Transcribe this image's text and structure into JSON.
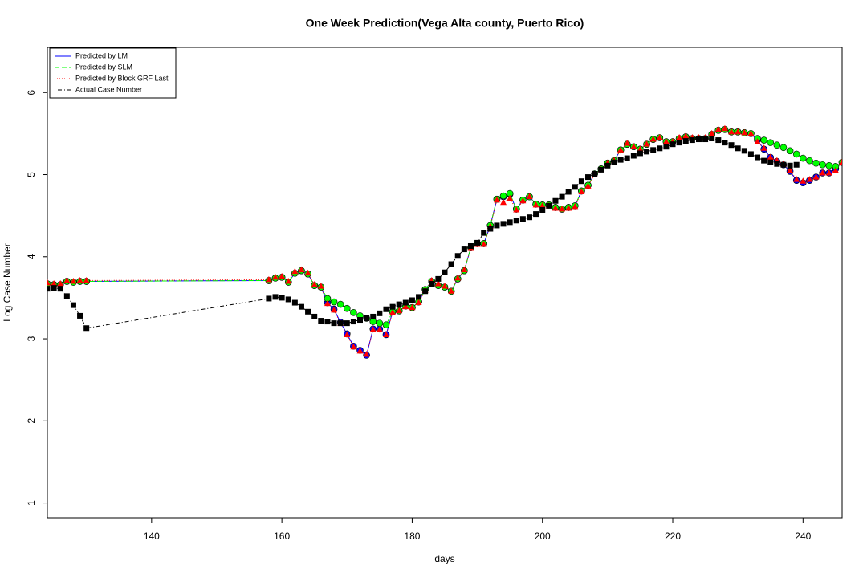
{
  "chart_data": {
    "type": "line",
    "title": "One Week Prediction(Vega Alta county, Puerto Rico)",
    "x_label": "days",
    "y_label": "Log Case Number",
    "xlim": [
      124,
      246
    ],
    "xticks": [
      140,
      160,
      180,
      200,
      220,
      240
    ],
    "ylim": [
      0.82,
      6.55
    ],
    "yticks": [
      1,
      2,
      3,
      4,
      5,
      6
    ],
    "legend": "top-left",
    "x": [
      124,
      125,
      126,
      127,
      128,
      129,
      130,
      158,
      159,
      160,
      161,
      162,
      163,
      164,
      165,
      166,
      167,
      168,
      169,
      170,
      171,
      172,
      173,
      174,
      175,
      176,
      177,
      178,
      179,
      180,
      181,
      182,
      183,
      184,
      185,
      186,
      187,
      188,
      189,
      190,
      191,
      192,
      193,
      194,
      195,
      196,
      197,
      198,
      199,
      200,
      201,
      202,
      203,
      204,
      205,
      206,
      207,
      208,
      209,
      210,
      211,
      212,
      213,
      214,
      215,
      216,
      217,
      218,
      219,
      220,
      221,
      222,
      223,
      224,
      225,
      226,
      227,
      228,
      229,
      230,
      231,
      232,
      233,
      234,
      235,
      236,
      237,
      238,
      239,
      240,
      241,
      242,
      243,
      244,
      245,
      246
    ],
    "series": [
      {
        "name": "Predicted by LM",
        "color": "#0000ff",
        "line_style": "solid",
        "marker": "circle",
        "values": [
          3.67,
          3.66,
          3.66,
          3.7,
          3.69,
          3.7,
          3.7,
          3.71,
          3.74,
          3.75,
          3.69,
          3.8,
          3.83,
          3.79,
          3.65,
          3.63,
          3.44,
          3.36,
          3.2,
          3.06,
          2.91,
          2.86,
          2.8,
          3.12,
          3.12,
          3.05,
          3.33,
          3.34,
          3.4,
          3.38,
          3.45,
          3.6,
          3.7,
          3.65,
          3.63,
          3.58,
          3.73,
          3.83,
          4.11,
          4.16,
          4.16,
          4.38,
          4.7,
          4.73,
          4.76,
          4.58,
          4.69,
          4.73,
          4.64,
          4.63,
          4.63,
          4.6,
          4.58,
          4.6,
          4.62,
          4.8,
          4.87,
          5.01,
          5.07,
          5.14,
          5.17,
          5.3,
          5.37,
          5.34,
          5.31,
          5.37,
          5.43,
          5.45,
          5.4,
          5.4,
          5.44,
          5.46,
          5.44,
          5.44,
          5.44,
          5.49,
          5.54,
          5.55,
          5.52,
          5.52,
          5.51,
          5.5,
          5.42,
          5.31,
          5.21,
          5.16,
          5.12,
          5.04,
          4.93,
          4.9,
          4.93,
          4.97,
          5.02,
          5.02,
          5.07,
          5.15
        ]
      },
      {
        "name": "Predicted by SLM",
        "color": "#00ff00",
        "line_style": "dashed",
        "marker": "circle",
        "values": [
          3.67,
          3.66,
          3.66,
          3.7,
          3.69,
          3.7,
          3.7,
          3.71,
          3.74,
          3.75,
          3.69,
          3.8,
          3.83,
          3.79,
          3.65,
          3.63,
          3.49,
          3.45,
          3.42,
          3.37,
          3.32,
          3.28,
          3.25,
          3.21,
          3.19,
          3.17,
          3.33,
          3.34,
          3.4,
          3.38,
          3.45,
          3.6,
          3.7,
          3.65,
          3.63,
          3.58,
          3.73,
          3.83,
          4.11,
          4.16,
          4.16,
          4.38,
          4.7,
          4.74,
          4.77,
          4.58,
          4.69,
          4.73,
          4.64,
          4.63,
          4.63,
          4.6,
          4.58,
          4.6,
          4.62,
          4.8,
          4.87,
          5.01,
          5.07,
          5.14,
          5.17,
          5.3,
          5.37,
          5.34,
          5.31,
          5.37,
          5.43,
          5.45,
          5.4,
          5.4,
          5.44,
          5.46,
          5.44,
          5.44,
          5.44,
          5.49,
          5.54,
          5.55,
          5.52,
          5.52,
          5.51,
          5.5,
          5.44,
          5.42,
          5.39,
          5.36,
          5.33,
          5.29,
          5.25,
          5.2,
          5.17,
          5.14,
          5.12,
          5.11,
          5.1,
          5.15
        ]
      },
      {
        "name": "Predicted by Block GRF Last",
        "color": "#ff0000",
        "line_style": "dotted",
        "marker": "triangle",
        "values": [
          3.68,
          3.67,
          3.67,
          3.71,
          3.7,
          3.71,
          3.71,
          3.72,
          3.75,
          3.76,
          3.7,
          3.82,
          3.84,
          3.8,
          3.66,
          3.64,
          3.43,
          3.35,
          3.19,
          3.05,
          2.9,
          2.85,
          2.81,
          3.11,
          3.11,
          3.05,
          3.32,
          3.34,
          3.39,
          3.38,
          3.44,
          3.59,
          3.71,
          3.67,
          3.64,
          3.58,
          3.74,
          3.84,
          4.1,
          4.15,
          4.15,
          4.37,
          4.69,
          4.66,
          4.71,
          4.57,
          4.68,
          4.73,
          4.63,
          4.62,
          4.62,
          4.59,
          4.58,
          4.59,
          4.61,
          4.79,
          4.86,
          5.0,
          5.06,
          5.14,
          5.17,
          5.3,
          5.38,
          5.34,
          5.31,
          5.37,
          5.43,
          5.45,
          5.4,
          5.4,
          5.45,
          5.47,
          5.45,
          5.45,
          5.45,
          5.5,
          5.55,
          5.56,
          5.52,
          5.52,
          5.51,
          5.5,
          5.4,
          5.32,
          5.21,
          5.17,
          5.13,
          5.05,
          4.94,
          4.92,
          4.94,
          4.97,
          5.02,
          5.02,
          5.05,
          5.15
        ]
      },
      {
        "name": "Actual Case Number",
        "color": "#000000",
        "line_style": "dotdash",
        "marker": "square",
        "values": [
          3.61,
          3.62,
          3.61,
          3.52,
          3.41,
          3.28,
          3.13,
          3.49,
          3.51,
          3.5,
          3.48,
          3.44,
          3.39,
          3.33,
          3.27,
          3.22,
          3.21,
          3.19,
          3.19,
          3.19,
          3.21,
          3.23,
          3.25,
          3.27,
          3.31,
          3.36,
          3.39,
          3.42,
          3.44,
          3.47,
          3.51,
          3.58,
          3.67,
          3.73,
          3.81,
          3.91,
          4.01,
          4.09,
          4.13,
          4.17,
          4.29,
          4.34,
          4.38,
          4.4,
          4.42,
          4.44,
          4.46,
          4.48,
          4.52,
          4.57,
          4.62,
          4.68,
          4.73,
          4.79,
          4.85,
          4.92,
          4.97,
          5.01,
          5.06,
          5.11,
          5.15,
          5.18,
          5.2,
          5.23,
          5.26,
          5.28,
          5.3,
          5.32,
          5.34,
          5.37,
          5.39,
          5.41,
          5.42,
          5.43,
          5.43,
          5.44,
          5.42,
          5.39,
          5.36,
          5.32,
          5.29,
          5.25,
          5.21,
          5.17,
          5.15,
          5.13,
          5.12,
          5.11,
          5.12,
          null,
          null,
          null,
          null,
          null,
          null,
          null
        ]
      }
    ]
  }
}
